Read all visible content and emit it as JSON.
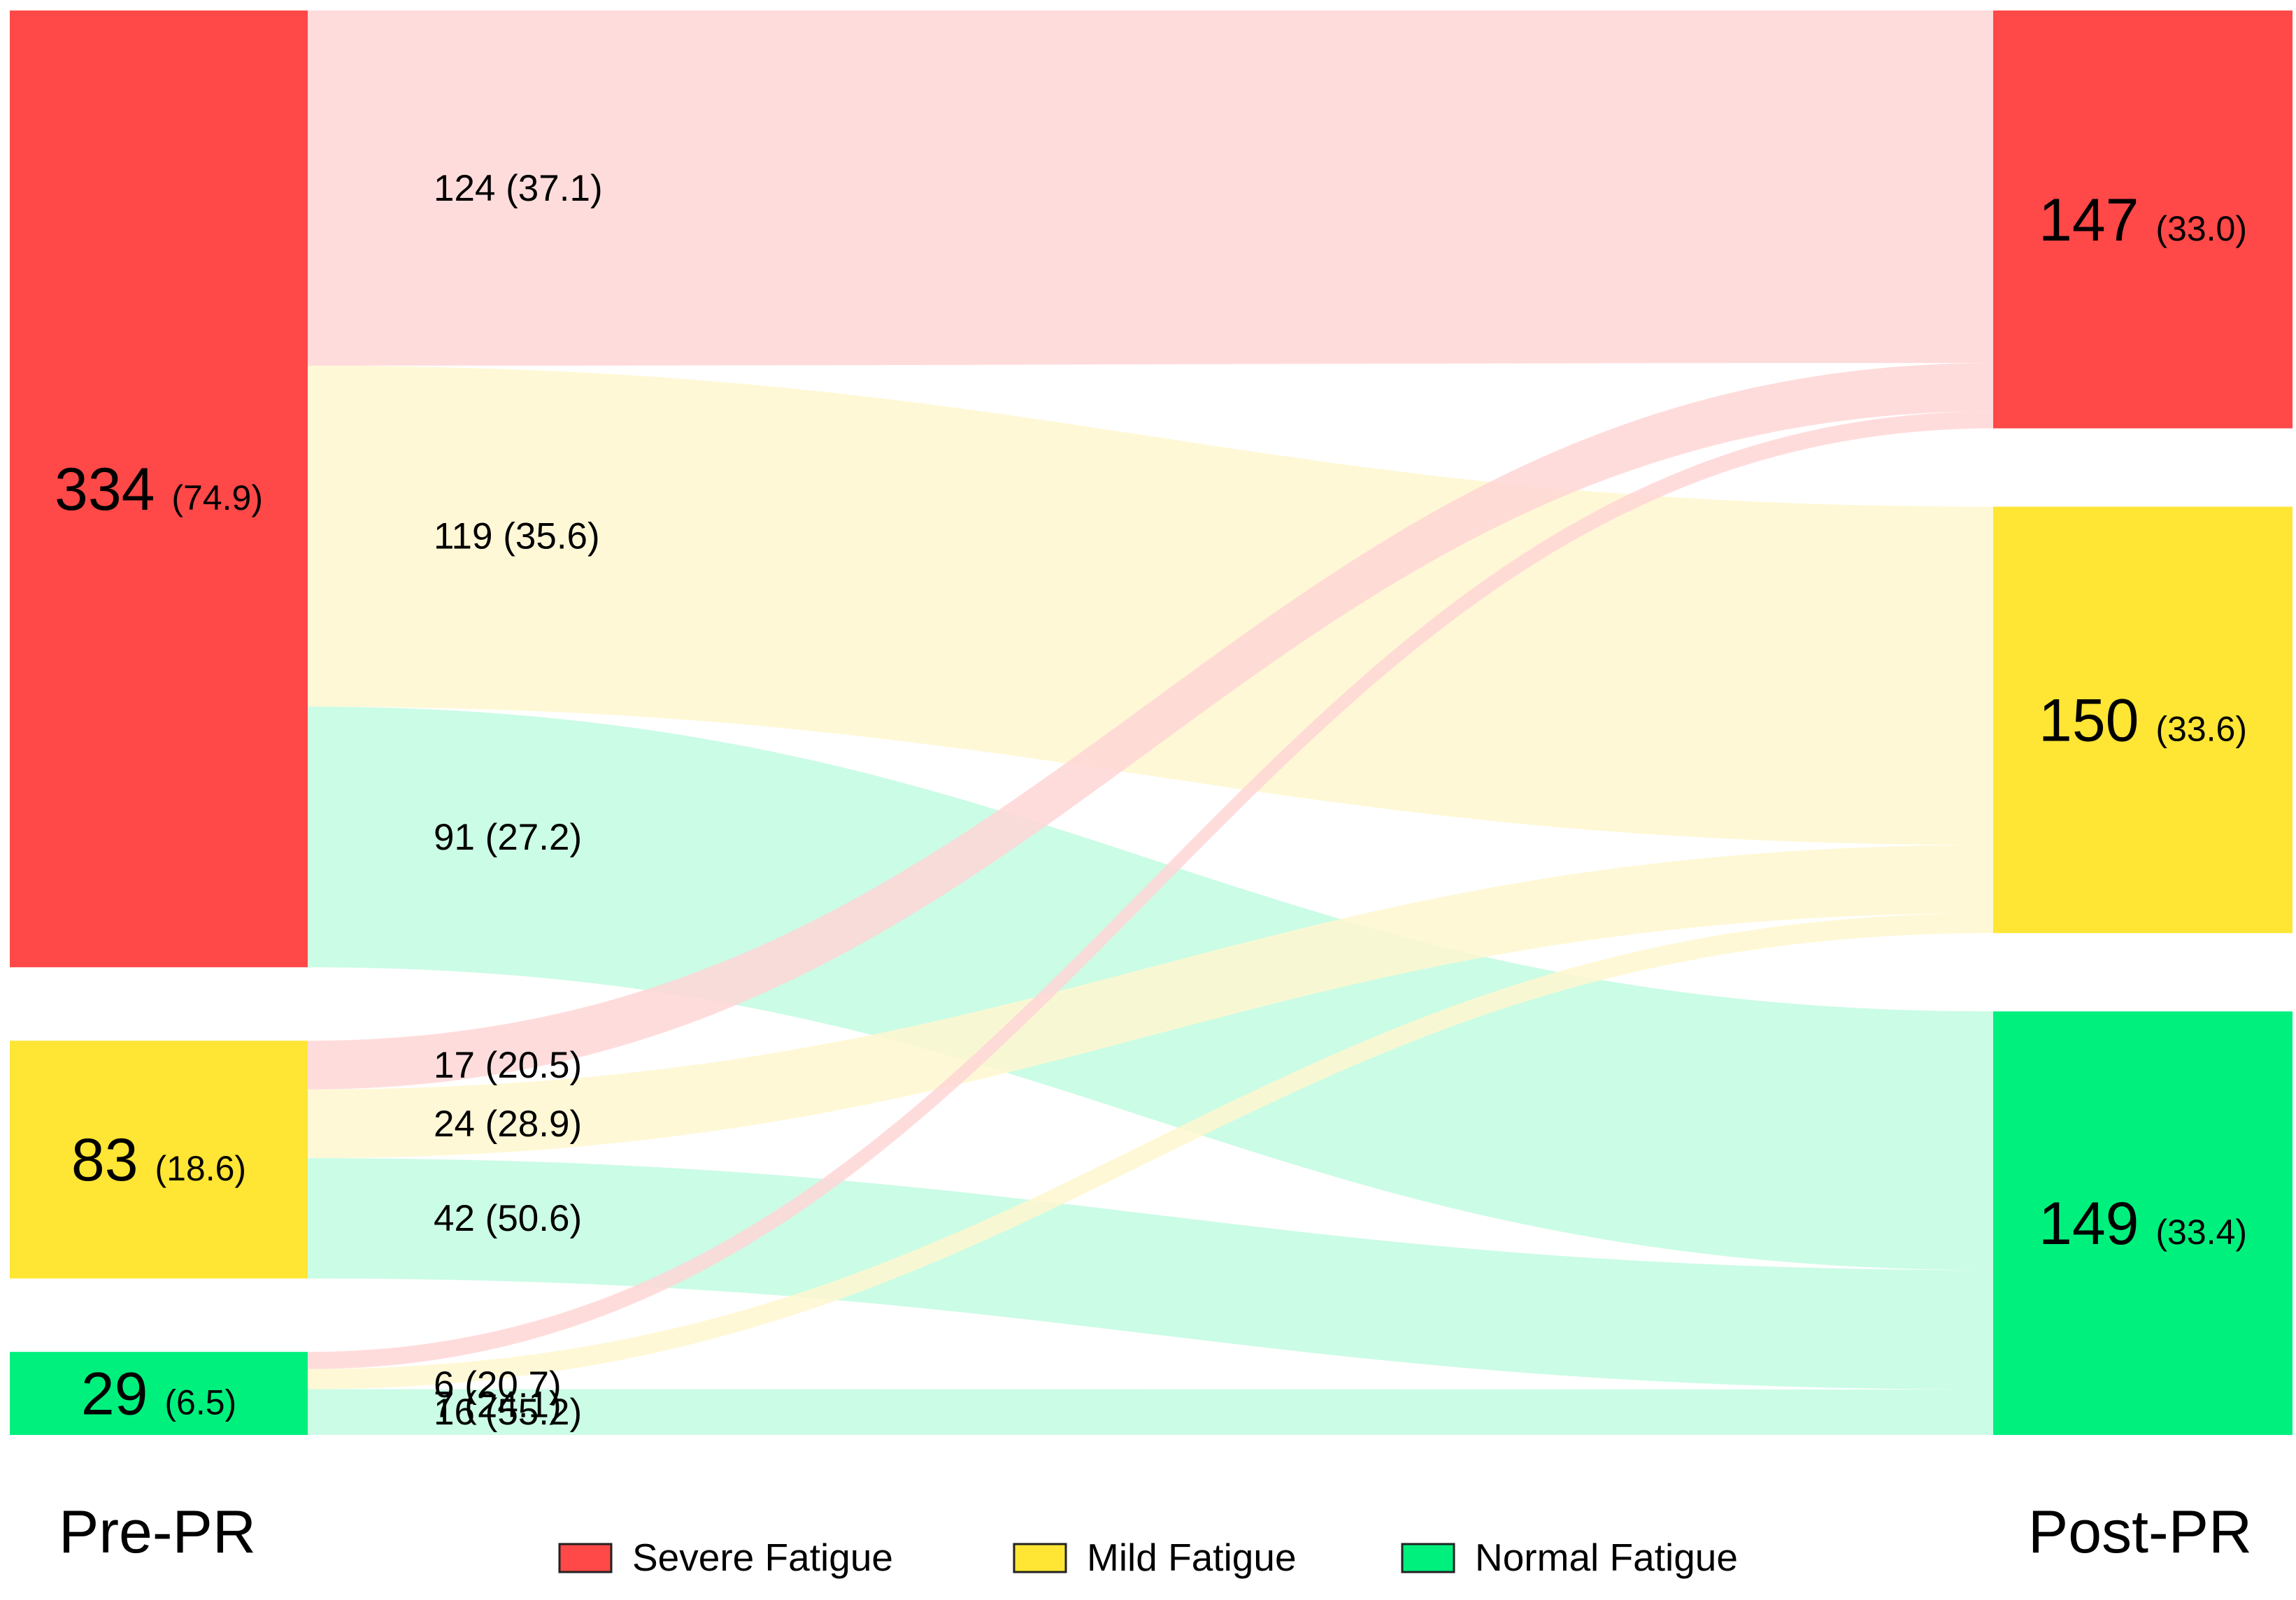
{
  "chart_data": {
    "type": "sankey",
    "stages": [
      "Pre-PR",
      "Post-PR"
    ],
    "categories": [
      {
        "id": "severe",
        "name": "Severe Fatigue",
        "color": "#ff4848",
        "flow_color": "#ffd6d6"
      },
      {
        "id": "mild",
        "name": "Mild Fatigue",
        "color": "#ffe534",
        "flow_color": "#fff7cf"
      },
      {
        "id": "normal",
        "name": "Normal Fatigue",
        "color": "#00f07e",
        "flow_color": "#c2fce2"
      }
    ],
    "nodes": {
      "pre": [
        {
          "category": "severe",
          "count": "334",
          "pct": "(74.9)",
          "value": 334
        },
        {
          "category": "mild",
          "count": "83",
          "pct": "(18.6)",
          "value": 83
        },
        {
          "category": "normal",
          "count": "29",
          "pct": "(6.5)",
          "value": 29
        }
      ],
      "post": [
        {
          "category": "severe",
          "count": "147",
          "pct": "(33.0)",
          "value": 147
        },
        {
          "category": "mild",
          "count": "150",
          "pct": "(33.6)",
          "value": 150
        },
        {
          "category": "normal",
          "count": "149",
          "pct": "(33.4)",
          "value": 149
        }
      ]
    },
    "flows": [
      {
        "from": "severe",
        "to": "severe",
        "value": 124,
        "label": "124 (37.1)"
      },
      {
        "from": "severe",
        "to": "mild",
        "value": 119,
        "label": "119 (35.6)"
      },
      {
        "from": "severe",
        "to": "normal",
        "value": 91,
        "label": "91 (27.2)"
      },
      {
        "from": "mild",
        "to": "severe",
        "value": 17,
        "label": "17 (20.5)"
      },
      {
        "from": "mild",
        "to": "mild",
        "value": 24,
        "label": "24 (28.9)"
      },
      {
        "from": "mild",
        "to": "normal",
        "value": 42,
        "label": "42 (50.6)"
      },
      {
        "from": "normal",
        "to": "severe",
        "value": 6,
        "label": "6 (20.7)"
      },
      {
        "from": "normal",
        "to": "mild",
        "value": 7,
        "label": "7 (24.1)"
      },
      {
        "from": "normal",
        "to": "normal",
        "value": 16,
        "label": "16 (55.2)"
      }
    ],
    "legend": {
      "position": "bottom",
      "items": [
        "Severe Fatigue",
        "Mild Fatigue",
        "Normal Fatigue"
      ]
    }
  }
}
